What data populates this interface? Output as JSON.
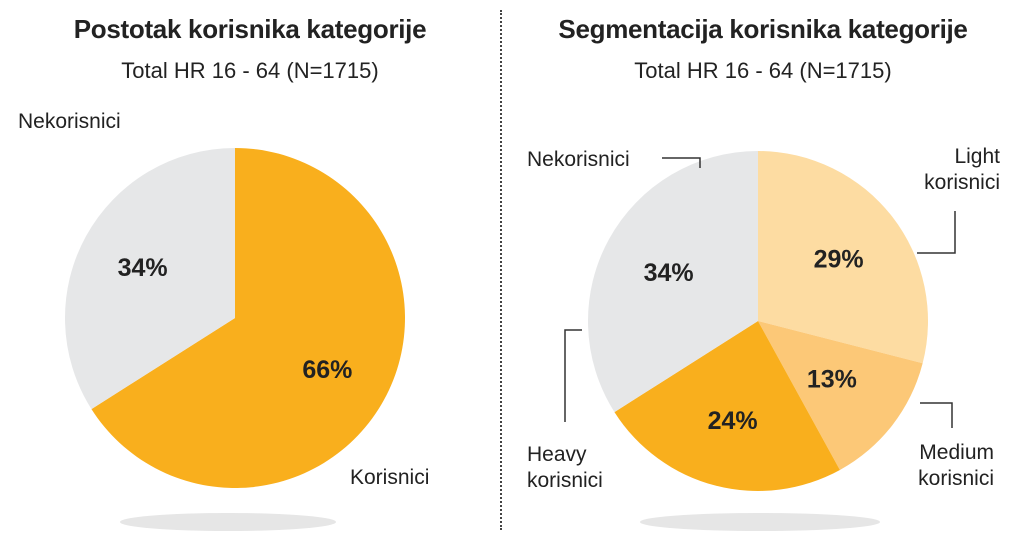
{
  "chart_data": [
    {
      "type": "pie",
      "title": "Postotak korisnika kategorije",
      "subtitle": "Total HR 16 - 64 (N=1715)",
      "slices": [
        {
          "label": "Korisnici",
          "value": 66,
          "display": "66%",
          "color": "#F9AF1D"
        },
        {
          "label": "Nekorisnici",
          "value": 34,
          "display": "34%",
          "color": "#E6E7E8"
        }
      ]
    },
    {
      "type": "pie",
      "title": "Segmentacija korisnika kategorije",
      "subtitle": "Total HR 16 - 64 (N=1715)",
      "slices": [
        {
          "label": "Light korisnici",
          "label_lines": [
            "Light",
            "korisnici"
          ],
          "value": 29,
          "display": "29%",
          "color": "#FDDCA2"
        },
        {
          "label": "Medium korisnici",
          "label_lines": [
            "Medium",
            "korisnici"
          ],
          "value": 13,
          "display": "13%",
          "color": "#FCC877"
        },
        {
          "label": "Heavy korisnici",
          "label_lines": [
            "Heavy",
            "korisnici"
          ],
          "value": 24,
          "display": "24%",
          "color": "#F9AF1D"
        },
        {
          "label": "Nekorisnici",
          "label_lines": [
            "Nekorisnici"
          ],
          "value": 34,
          "display": "34%",
          "color": "#E6E7E8"
        }
      ]
    }
  ]
}
